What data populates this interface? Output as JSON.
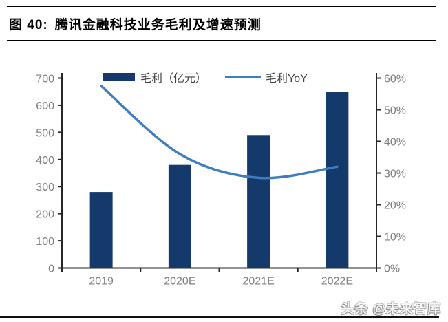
{
  "figure": {
    "label": "图 40:",
    "title": "腾讯金融科技业务毛利及增速预测"
  },
  "watermark": "头条 @未来智库",
  "colors": {
    "bar": "#133A6A",
    "line": "#3E7DC0",
    "axis": "#262626",
    "tick_label": "#7F7F7F",
    "legend_text": "#3F3F3F"
  },
  "chart_data": {
    "type": "bar+line combo",
    "categories": [
      "2019",
      "2020E",
      "2021E",
      "2022E"
    ],
    "series": [
      {
        "name": "毛利（亿元）",
        "type": "bar",
        "axis": "left",
        "values": [
          280,
          380,
          490,
          650
        ]
      },
      {
        "name": "毛利YoY",
        "type": "line",
        "axis": "right",
        "values": [
          57.5,
          36.0,
          28.5,
          32.0
        ]
      }
    ],
    "left_axis": {
      "min": 0,
      "max": 700,
      "tick_values": [
        0,
        100,
        200,
        300,
        400,
        500,
        600,
        700
      ],
      "tick_labels": [
        "0",
        "100",
        "200",
        "300",
        "400",
        "500",
        "600",
        "700"
      ]
    },
    "right_axis": {
      "min": 0,
      "max": 60,
      "tick_values": [
        0,
        10,
        20,
        30,
        40,
        50,
        60
      ],
      "tick_labels": [
        "0%",
        "10%",
        "20%",
        "30%",
        "40%",
        "50%",
        "60%"
      ]
    },
    "legend_position": "top",
    "grid": false
  }
}
